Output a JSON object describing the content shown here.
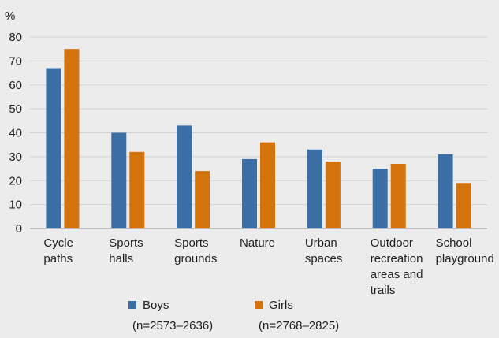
{
  "chart_data": {
    "type": "bar",
    "ylabel": "%",
    "ylim": [
      0,
      80
    ],
    "yticks": [
      0,
      10,
      20,
      30,
      40,
      50,
      60,
      70,
      80
    ],
    "grid": true,
    "legend_position": "bottom",
    "categories": [
      [
        "Cycle",
        "paths"
      ],
      [
        "Sports",
        "halls"
      ],
      [
        "Sports",
        "grounds"
      ],
      [
        "Nature"
      ],
      [
        "Urban",
        "spaces"
      ],
      [
        "Outdoor",
        "recreation",
        "areas and",
        "trails"
      ],
      [
        "School",
        "playground"
      ]
    ],
    "series": [
      {
        "name": "Boys",
        "note": "(n=2573–2636)",
        "color": "#3a6ea5",
        "values": [
          67,
          40,
          43,
          29,
          33,
          25,
          31
        ]
      },
      {
        "name": "Girls",
        "note": "(n=2768–2825)",
        "color": "#d4720b",
        "values": [
          75,
          32,
          24,
          36,
          28,
          27,
          19
        ]
      }
    ]
  }
}
